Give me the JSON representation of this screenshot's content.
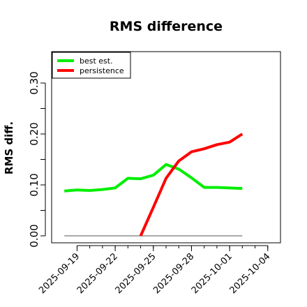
{
  "chart_data": {
    "type": "line",
    "title": "RMS difference",
    "ylabel": "RMS diff.",
    "xlabel": "",
    "ylim": [
      0,
      0.32
    ],
    "xlim": [
      "2025-09-17",
      "2025-10-05"
    ],
    "yticks": [
      "0.00",
      "0.10",
      "0.20",
      "0.30"
    ],
    "ytick_values": [
      0.0,
      0.1,
      0.2,
      0.3
    ],
    "xticks": [
      "2025-09-19",
      "2025-09-22",
      "2025-09-25",
      "2025-09-28",
      "2025-10-01",
      "2025-10-04"
    ],
    "grid": false,
    "legend_position": "top-left",
    "series": [
      {
        "name": "best est.",
        "color": "#00ee00",
        "x": [
          "2025-09-18",
          "2025-09-19",
          "2025-09-20",
          "2025-09-21",
          "2025-09-22",
          "2025-09-23",
          "2025-09-24",
          "2025-09-25",
          "2025-09-26",
          "2025-09-27",
          "2025-09-28",
          "2025-09-29",
          "2025-09-30",
          "2025-10-01",
          "2025-10-02"
        ],
        "values": [
          0.088,
          0.09,
          0.089,
          0.091,
          0.094,
          0.113,
          0.112,
          0.119,
          0.14,
          0.131,
          0.114,
          0.095,
          0.095,
          0.094,
          0.093
        ]
      },
      {
        "name": "persistence",
        "color": "#ff0000",
        "x": [
          "2025-09-24",
          "2025-09-25",
          "2025-09-26",
          "2025-09-27",
          "2025-09-28",
          "2025-09-29",
          "2025-09-30",
          "2025-10-01",
          "2025-10-02"
        ],
        "values": [
          0.0,
          0.056,
          0.113,
          0.147,
          0.165,
          0.171,
          0.179,
          0.184,
          0.2
        ]
      }
    ],
    "reference_line": {
      "color": "#555555",
      "y": 0.0,
      "x": [
        "2025-09-18",
        "2025-10-02"
      ]
    }
  }
}
